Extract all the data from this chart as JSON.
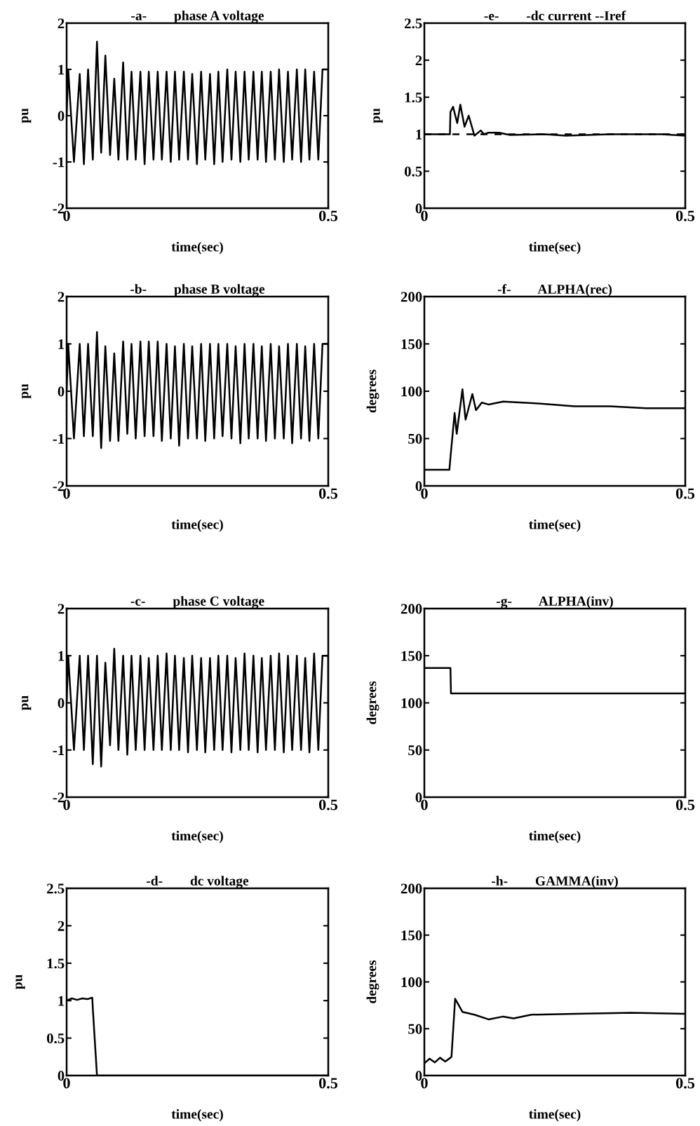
{
  "chart_data": [
    {
      "type": "line",
      "title": "-a-        phase A voltage",
      "xlabel": "time(sec)",
      "ylabel": "pu",
      "xlim": [
        0,
        0.5
      ],
      "ylim": [
        -2,
        2
      ],
      "xticks": [
        0,
        0.5
      ],
      "yticks": [
        -2,
        -1,
        0,
        1,
        2
      ],
      "series": [
        {
          "color": "#000000",
          "line_style": "solid",
          "x": [
            0,
            0.003,
            0.014,
            0.025,
            0.033,
            0.041,
            0.05,
            0.058,
            0.066,
            0.074,
            0.083,
            0.091,
            0.099,
            0.108,
            0.116,
            0.124,
            0.132,
            0.141,
            0.149,
            0.157,
            0.166,
            0.174,
            0.182,
            0.191,
            0.199,
            0.207,
            0.215,
            0.224,
            0.232,
            0.24,
            0.249,
            0.257,
            0.265,
            0.274,
            0.282,
            0.29,
            0.298,
            0.307,
            0.315,
            0.323,
            0.332,
            0.34,
            0.348,
            0.357,
            0.365,
            0.373,
            0.381,
            0.39,
            0.398,
            0.406,
            0.415,
            0.423,
            0.431,
            0.44,
            0.448,
            0.456,
            0.464,
            0.473,
            0.481,
            0.489,
            0.5,
            0.5
          ],
          "values": [
            0,
            1.0,
            -1.0,
            0.9,
            -1.05,
            1.0,
            -0.95,
            1.6,
            -0.8,
            1.3,
            -0.85,
            0.8,
            -0.95,
            1.15,
            -0.95,
            0.95,
            -0.95,
            0.95,
            -1.05,
            0.95,
            -0.95,
            0.95,
            -0.95,
            0.95,
            -1.0,
            0.95,
            -0.95,
            0.95,
            -0.95,
            0.9,
            -1.05,
            0.95,
            -0.95,
            0.9,
            -1.05,
            0.95,
            -1.0,
            1.0,
            -0.95,
            0.95,
            -1.0,
            0.95,
            -0.95,
            0.95,
            -0.95,
            0.95,
            -1.0,
            0.95,
            -0.95,
            1.0,
            -1.0,
            0.95,
            -0.95,
            1.0,
            -1.0,
            1.0,
            -0.95,
            0.95,
            -0.95,
            1.0,
            1.0,
            -1.05
          ]
        }
      ]
    },
    {
      "type": "line",
      "title": "-e-        -dc current --Iref",
      "xlabel": "time(sec)",
      "ylabel": "pu",
      "xlim": [
        0,
        0.5
      ],
      "ylim": [
        0,
        2.5
      ],
      "xticks": [
        0,
        0.5
      ],
      "yticks": [
        0,
        0.5,
        1,
        1.5,
        2,
        2.5
      ],
      "series": [
        {
          "color": "#000000",
          "line_style": "dashed",
          "x": [
            0,
            0.5
          ],
          "values": [
            1,
            1
          ]
        },
        {
          "color": "#000000",
          "line_style": "solid",
          "x": [
            0,
            0.049,
            0.05,
            0.055,
            0.063,
            0.069,
            0.077,
            0.085,
            0.096,
            0.108,
            0.114,
            0.123,
            0.143,
            0.164,
            0.231,
            0.271,
            0.356,
            0.455,
            0.5
          ],
          "values": [
            1,
            1,
            1.3,
            1.37,
            1.15,
            1.4,
            1.1,
            1.25,
            0.98,
            1.05,
            1.0,
            1.02,
            1.02,
            0.99,
            1.0,
            0.98,
            1.0,
            1.0,
            0.98
          ]
        }
      ]
    },
    {
      "type": "line",
      "title": "-b-        phase B voltage",
      "xlabel": "time(sec)",
      "ylabel": "pu",
      "xlim": [
        0,
        0.5
      ],
      "ylim": [
        -2,
        2
      ],
      "xticks": [
        0,
        0.5
      ],
      "yticks": [
        -2,
        -1,
        0,
        1,
        2
      ],
      "series": [
        {
          "color": "#000000",
          "line_style": "solid",
          "x": [
            0,
            0.003,
            0.014,
            0.025,
            0.033,
            0.041,
            0.05,
            0.058,
            0.066,
            0.074,
            0.083,
            0.091,
            0.099,
            0.108,
            0.116,
            0.124,
            0.132,
            0.141,
            0.149,
            0.157,
            0.166,
            0.174,
            0.182,
            0.191,
            0.199,
            0.207,
            0.215,
            0.224,
            0.232,
            0.24,
            0.249,
            0.257,
            0.265,
            0.274,
            0.282,
            0.29,
            0.298,
            0.307,
            0.315,
            0.323,
            0.332,
            0.34,
            0.348,
            0.357,
            0.365,
            0.373,
            0.381,
            0.39,
            0.398,
            0.406,
            0.415,
            0.423,
            0.431,
            0.44,
            0.448,
            0.456,
            0.464,
            0.473,
            0.481,
            0.489,
            0.5,
            0.5
          ],
          "values": [
            0,
            1.0,
            -1.0,
            1.0,
            -0.95,
            1.0,
            -0.95,
            1.25,
            -1.2,
            0.95,
            -1.05,
            0.8,
            -1.05,
            1.05,
            -0.9,
            1.0,
            -1.0,
            1.05,
            -0.95,
            1.05,
            -0.95,
            1.05,
            -1.05,
            1.0,
            -1.0,
            0.95,
            -1.15,
            1.0,
            -1.0,
            0.95,
            -1.0,
            1.0,
            -1.05,
            1.0,
            -1.0,
            1.0,
            -0.95,
            1.0,
            -1.0,
            0.95,
            -1.1,
            1.0,
            -1.0,
            1.0,
            -1.0,
            0.95,
            -1.05,
            1.0,
            -1.0,
            0.95,
            -1.0,
            1.0,
            -1.1,
            1.0,
            -1.0,
            0.95,
            -1.05,
            1.0,
            -1.0,
            1.0,
            1.0,
            -1.0
          ]
        }
      ]
    },
    {
      "type": "line",
      "title": "-f-        ALPHA(rec)",
      "xlabel": "time(sec)",
      "ylabel": "degrees",
      "xlim": [
        0,
        0.5
      ],
      "ylim": [
        0,
        200
      ],
      "xticks": [
        0,
        0.5
      ],
      "yticks": [
        0,
        50,
        100,
        150,
        200
      ],
      "series": [
        {
          "color": "#000000",
          "line_style": "solid",
          "x": [
            0,
            0.048,
            0.05,
            0.058,
            0.062,
            0.073,
            0.079,
            0.092,
            0.099,
            0.11,
            0.123,
            0.151,
            0.219,
            0.288,
            0.356,
            0.425,
            0.5
          ],
          "values": [
            17,
            17,
            30,
            77,
            55,
            102,
            70,
            97,
            80,
            88,
            86,
            89,
            87,
            84,
            84,
            82,
            82
          ]
        }
      ]
    },
    {
      "type": "line",
      "title": "-c-        phase C voltage",
      "xlabel": "time(sec)",
      "ylabel": "pu",
      "xlim": [
        0,
        0.5
      ],
      "ylim": [
        -2,
        2
      ],
      "xticks": [
        0,
        0.5
      ],
      "yticks": [
        -2,
        -1,
        0,
        1,
        2
      ],
      "series": [
        {
          "color": "#000000",
          "line_style": "solid",
          "x": [
            0,
            0.003,
            0.014,
            0.025,
            0.033,
            0.041,
            0.05,
            0.058,
            0.066,
            0.074,
            0.083,
            0.091,
            0.099,
            0.108,
            0.116,
            0.124,
            0.132,
            0.141,
            0.149,
            0.157,
            0.166,
            0.174,
            0.182,
            0.191,
            0.199,
            0.207,
            0.215,
            0.224,
            0.232,
            0.24,
            0.249,
            0.257,
            0.265,
            0.274,
            0.282,
            0.29,
            0.298,
            0.307,
            0.315,
            0.323,
            0.332,
            0.34,
            0.348,
            0.357,
            0.365,
            0.373,
            0.381,
            0.39,
            0.398,
            0.406,
            0.415,
            0.423,
            0.431,
            0.44,
            0.448,
            0.456,
            0.464,
            0.473,
            0.481,
            0.489,
            0.5,
            0.5
          ],
          "values": [
            0,
            1.0,
            -1.0,
            1.0,
            -1.0,
            1.0,
            -1.3,
            1.0,
            -1.35,
            0.85,
            -0.9,
            1.15,
            -1.0,
            1.0,
            -1.1,
            1.0,
            -1.0,
            1.0,
            -1.0,
            0.95,
            -1.0,
            1.0,
            -1.0,
            1.05,
            -1.0,
            1.0,
            -1.0,
            0.95,
            -1.05,
            1.0,
            -1.0,
            0.95,
            -1.05,
            0.95,
            -1.0,
            1.0,
            -1.0,
            1.0,
            -1.05,
            0.95,
            -1.0,
            1.05,
            -1.0,
            1.0,
            -1.05,
            0.95,
            -1.0,
            1.0,
            -1.0,
            1.05,
            -1.05,
            1.0,
            -1.0,
            1.0,
            -1.0,
            0.95,
            -1.05,
            1.05,
            -1.0,
            1.0,
            1.0,
            -1.0
          ]
        }
      ]
    },
    {
      "type": "line",
      "title": "-g-        ALPHA(inv)",
      "xlabel": "time(sec)",
      "ylabel": "degrees",
      "xlim": [
        0,
        0.5
      ],
      "ylim": [
        0,
        200
      ],
      "xticks": [
        0,
        0.5
      ],
      "yticks": [
        0,
        50,
        100,
        150,
        200
      ],
      "series": [
        {
          "color": "#000000",
          "line_style": "solid",
          "x": [
            0,
            0.05,
            0.051,
            0.5
          ],
          "values": [
            137,
            137,
            110,
            110
          ]
        }
      ]
    },
    {
      "type": "line",
      "title": "-d-        dc voltage",
      "xlabel": "time(sec)",
      "ylabel": "pu",
      "xlim": [
        0,
        0.5
      ],
      "ylim": [
        0,
        2.5
      ],
      "xticks": [
        0,
        0.5
      ],
      "yticks": [
        0,
        0.5,
        1,
        1.5,
        2,
        2.5
      ],
      "series": [
        {
          "color": "#000000",
          "line_style": "solid",
          "x": [
            0,
            0.01,
            0.02,
            0.03,
            0.04,
            0.049,
            0.05,
            0.058,
            0.5
          ],
          "values": [
            1.0,
            1.03,
            1.01,
            1.03,
            1.02,
            1.04,
            0.9,
            0,
            0
          ]
        }
      ]
    },
    {
      "type": "line",
      "title": "-h-        GAMMA(inv)",
      "xlabel": "time(sec)",
      "ylabel": "degrees",
      "xlim": [
        0,
        0.5
      ],
      "ylim": [
        0,
        200
      ],
      "xticks": [
        0,
        0.5
      ],
      "yticks": [
        0,
        50,
        100,
        150,
        200
      ],
      "series": [
        {
          "color": "#000000",
          "line_style": "solid",
          "x": [
            0,
            0.01,
            0.02,
            0.03,
            0.04,
            0.05,
            0.052,
            0.059,
            0.073,
            0.096,
            0.123,
            0.151,
            0.171,
            0.205,
            0.288,
            0.397,
            0.5
          ],
          "values": [
            13,
            18,
            14,
            19,
            15,
            19,
            20,
            82,
            68,
            65,
            60,
            63,
            61,
            65,
            66,
            67,
            66
          ]
        }
      ]
    }
  ]
}
